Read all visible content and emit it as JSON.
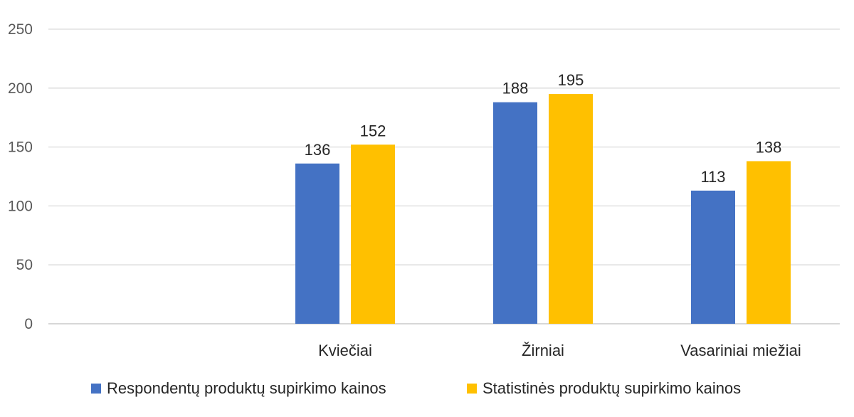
{
  "chart_data": {
    "type": "bar",
    "title": "",
    "xlabel": "",
    "ylabel": "",
    "ylim": [
      0,
      250
    ],
    "yticks": [
      0,
      50,
      100,
      150,
      200,
      250
    ],
    "grid": true,
    "legend_position": "bottom",
    "categories": [
      "",
      "Kviečiai",
      "Žirniai",
      "Vasariniai miežiai"
    ],
    "series": [
      {
        "name": "Respondentų produktų supirkimo kainos",
        "color": "#4472C4",
        "values": [
          null,
          136,
          188,
          113
        ]
      },
      {
        "name": "Statistinės produktų supirkimo kainos",
        "color": "#FFC000",
        "values": [
          null,
          152,
          195,
          138
        ]
      }
    ]
  }
}
